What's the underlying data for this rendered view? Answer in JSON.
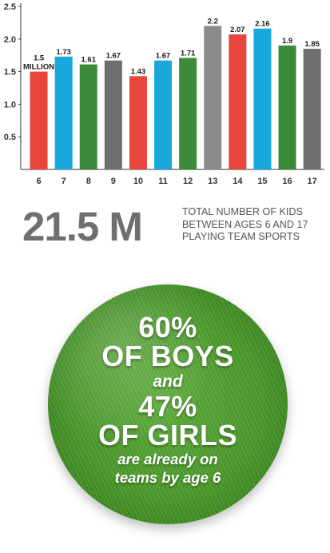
{
  "chart_data": {
    "type": "bar",
    "categories": [
      "6",
      "7",
      "8",
      "9",
      "10",
      "11",
      "12",
      "13",
      "14",
      "15",
      "16",
      "17"
    ],
    "values": [
      1.5,
      1.73,
      1.61,
      1.67,
      1.43,
      1.67,
      1.71,
      2.2,
      2.07,
      2.16,
      1.9,
      1.85
    ],
    "data_labels": [
      "1.5",
      "1.73",
      "1.61",
      "1.67",
      "1.43",
      "1.67",
      "1.71",
      "2.2",
      "2.07",
      "2.16",
      "1.9",
      "1.85"
    ],
    "first_label_unit": "MILLION",
    "y_ticks": [
      "0.5",
      "1.0",
      "1.5",
      "2.0",
      "2.5"
    ],
    "ylim": [
      0,
      2.5
    ],
    "bar_colors": [
      "#e8453c",
      "#19a8dc",
      "#3c8b3a",
      "#6d6e70",
      "#e8453c",
      "#19a8dc",
      "#3c8b3a",
      "#8a8b8d",
      "#e8453c",
      "#19a8dc",
      "#3c8b3a",
      "#6d6e70"
    ],
    "grid": false,
    "title": "",
    "xlabel": "",
    "ylabel": ""
  },
  "stat": {
    "value": "21.5 M",
    "caption": "Total number of kids between ages 6 and 17 playing team sports"
  },
  "callout": {
    "boys_pct": "60%",
    "boys_label": "OF BOYS",
    "and_word": "and",
    "girls_pct": "47%",
    "girls_label": "OF GIRLS",
    "line1": "are already on",
    "line2": "teams by age 6"
  },
  "colors": {
    "red": "#e8453c",
    "blue": "#19a8dc",
    "green": "#3c8b3a",
    "gray": "#6d6e70",
    "stat_gray": "#6e6f71",
    "grass": "#4c9a2c"
  }
}
